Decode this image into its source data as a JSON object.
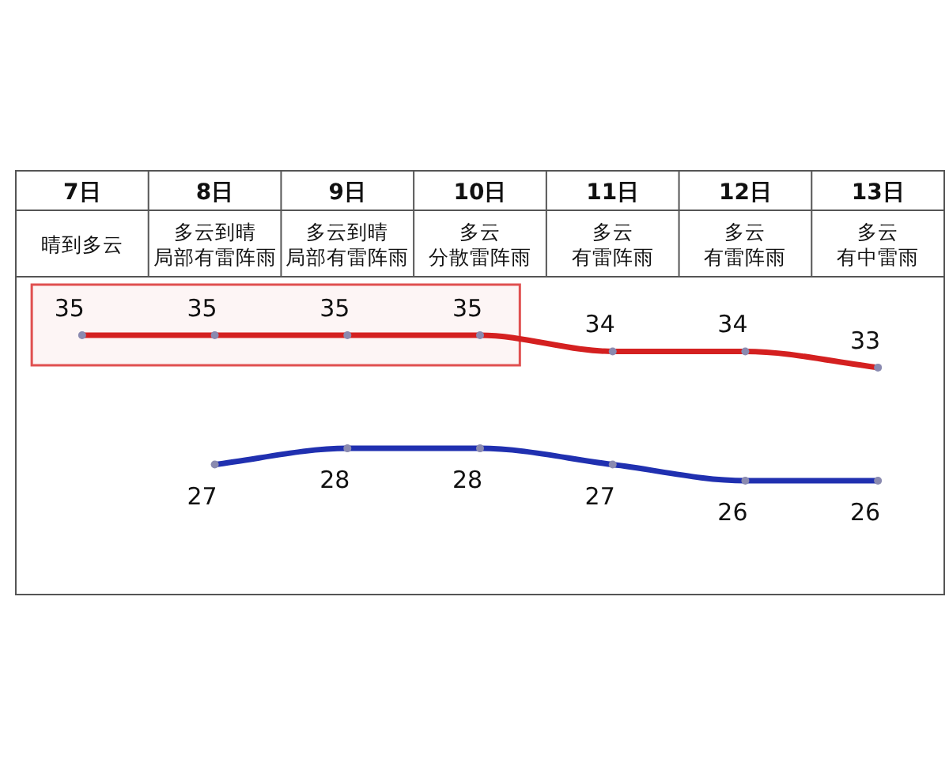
{
  "chart_data": {
    "type": "line",
    "categories": [
      "7日",
      "8日",
      "9日",
      "10日",
      "11日",
      "12日",
      "13日"
    ],
    "annotations": [
      "晴到多云",
      "多云到晴",
      "局部有雷阵雨",
      "多云到晴",
      "局部有雷阵雨",
      "多云",
      "分散雷阵雨",
      "多云",
      "有雷阵雨",
      "多云",
      "有雷阵雨",
      "多云",
      "有中雷雨"
    ],
    "series": [
      {
        "color": "#d42020",
        "values": [
          35,
          35,
          35,
          35,
          34,
          34,
          33
        ]
      },
      {
        "color": "#2030b0",
        "values": [
          null,
          27,
          28,
          28,
          27,
          26,
          26
        ]
      }
    ],
    "bands": [
      {
        "axis": "x",
        "from": "7日",
        "to": "10日",
        "color": "#e05050"
      }
    ],
    "data_labels": true,
    "marker": "circle"
  }
}
